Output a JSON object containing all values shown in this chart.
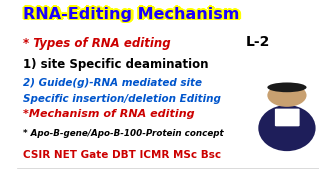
{
  "title": "RNA-Editing Mechanism",
  "title_color": "#1a00ff",
  "title_outline_color": "#ffff00",
  "bg_color": "#ffffff",
  "line1_text": "* Types of RNA editing",
  "line1_color": "#cc0000",
  "line1_tag": "L-2",
  "line1_tag_color": "#000000",
  "line2_text": "1) site Specific deamination",
  "line2_color": "#000000",
  "line3_text": "2) Guide(g)-RNA mediated site",
  "line3b_text": "Specific insertion/deletion Editing",
  "line3_color": "#0055cc",
  "line4_text": "*Mechanism of RNA editing",
  "line4_color": "#cc0000",
  "line5_text": "* Apo-B-gene/Apo-B-100-Protein concept",
  "line5_color": "#000000",
  "line6_text": "CSIR NET Gate DBT ICMR MSc Bsc",
  "line6_color": "#cc0000"
}
